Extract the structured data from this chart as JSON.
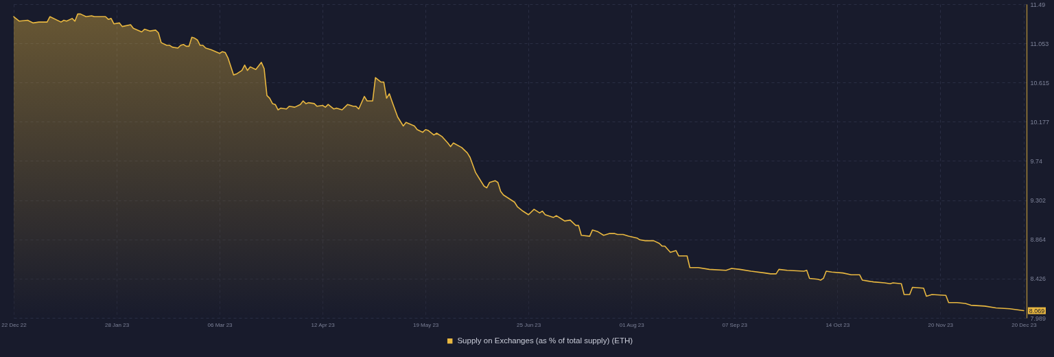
{
  "chart_data": {
    "type": "area",
    "legend": "bottom",
    "grid": true,
    "xlim": [
      "2022-12-22",
      "2023-12-21"
    ],
    "xticks": [
      {
        "value": "2022-12-22",
        "label": "22 Dec 22"
      },
      {
        "value": "2023-01-28",
        "label": "28 Jan 23"
      },
      {
        "value": "2023-03-06",
        "label": "06 Mar 23"
      },
      {
        "value": "2023-04-12",
        "label": "12 Apr 23"
      },
      {
        "value": "2023-05-19",
        "label": "19 May 23"
      },
      {
        "value": "2023-06-25",
        "label": "25 Jun 23"
      },
      {
        "value": "2023-08-01",
        "label": "01 Aug 23"
      },
      {
        "value": "2023-09-07",
        "label": "07 Sep 23"
      },
      {
        "value": "2023-10-14",
        "label": "14 Oct 23"
      },
      {
        "value": "2023-11-20",
        "label": "20 Nov 23"
      },
      {
        "value": "2023-12-20",
        "label": "20 Dec 23"
      }
    ],
    "ylim": [
      7.989,
      11.49
    ],
    "yticks": [
      7.989,
      8.426,
      8.864,
      9.302,
      9.74,
      10.177,
      10.615,
      11.053,
      11.49
    ],
    "x": [
      "2022-12-22",
      "2022-12-24",
      "2022-12-27",
      "2022-12-29",
      "2022-12-31",
      "2023-01-03",
      "2023-01-04",
      "2023-01-08",
      "2023-01-09",
      "2023-01-10",
      "2023-01-12",
      "2023-01-13",
      "2023-01-14",
      "2023-01-15",
      "2023-01-17",
      "2023-01-19",
      "2023-01-20",
      "2023-01-24",
      "2023-01-25",
      "2023-01-26",
      "2023-01-27",
      "2023-01-29",
      "2023-01-30",
      "2023-02-02",
      "2023-02-03",
      "2023-02-06",
      "2023-02-07",
      "2023-02-09",
      "2023-02-11",
      "2023-02-12",
      "2023-02-13",
      "2023-02-15",
      "2023-02-16",
      "2023-02-17",
      "2023-02-19",
      "2023-02-20",
      "2023-02-21",
      "2023-02-22",
      "2023-02-23",
      "2023-02-24",
      "2023-02-25",
      "2023-02-26",
      "2023-02-27",
      "2023-02-28",
      "2023-03-01",
      "2023-03-03",
      "2023-03-06",
      "2023-03-07",
      "2023-03-08",
      "2023-03-09",
      "2023-03-11",
      "2023-03-12",
      "2023-03-14",
      "2023-03-15",
      "2023-03-16",
      "2023-03-17",
      "2023-03-19",
      "2023-03-21",
      "2023-03-22",
      "2023-03-23",
      "2023-03-24",
      "2023-03-25",
      "2023-03-26",
      "2023-03-27",
      "2023-03-28",
      "2023-03-30",
      "2023-03-31",
      "2023-04-02",
      "2023-04-04",
      "2023-04-05",
      "2023-04-06",
      "2023-04-07",
      "2023-04-09",
      "2023-04-10",
      "2023-04-12",
      "2023-04-13",
      "2023-04-14",
      "2023-04-16",
      "2023-04-17",
      "2023-04-19",
      "2023-04-21",
      "2023-04-23",
      "2023-04-24",
      "2023-04-25",
      "2023-04-27",
      "2023-04-28",
      "2023-04-30",
      "2023-05-01",
      "2023-05-03",
      "2023-05-04",
      "2023-05-05",
      "2023-05-06",
      "2023-05-07",
      "2023-05-09",
      "2023-05-11",
      "2023-05-12",
      "2023-05-15",
      "2023-05-16",
      "2023-05-18",
      "2023-05-19",
      "2023-05-20",
      "2023-05-22",
      "2023-05-23",
      "2023-05-25",
      "2023-05-27",
      "2023-05-28",
      "2023-05-29",
      "2023-06-01",
      "2023-06-03",
      "2023-06-04",
      "2023-06-06",
      "2023-06-09",
      "2023-06-10",
      "2023-06-11",
      "2023-06-13",
      "2023-06-14",
      "2023-06-15",
      "2023-06-16",
      "2023-06-18",
      "2023-06-20",
      "2023-06-21",
      "2023-06-23",
      "2023-06-25",
      "2023-06-27",
      "2023-06-29",
      "2023-06-30",
      "2023-07-01",
      "2023-07-04",
      "2023-07-05",
      "2023-07-07",
      "2023-07-08",
      "2023-07-10",
      "2023-07-12",
      "2023-07-13",
      "2023-07-14",
      "2023-07-17",
      "2023-07-18",
      "2023-07-20",
      "2023-07-22",
      "2023-07-24",
      "2023-07-26",
      "2023-07-27",
      "2023-07-29",
      "2023-07-31",
      "2023-08-03",
      "2023-08-04",
      "2023-08-06",
      "2023-08-09",
      "2023-08-11",
      "2023-08-12",
      "2023-08-13",
      "2023-08-15",
      "2023-08-17",
      "2023-08-18",
      "2023-08-21",
      "2023-08-22",
      "2023-08-25",
      "2023-08-29",
      "2023-09-04",
      "2023-09-06",
      "2023-09-09",
      "2023-09-13",
      "2023-09-18",
      "2023-09-20",
      "2023-09-22",
      "2023-09-23",
      "2023-09-26",
      "2023-10-02",
      "2023-10-03",
      "2023-10-04",
      "2023-10-07",
      "2023-10-08",
      "2023-10-09",
      "2023-10-10",
      "2023-10-12",
      "2023-10-16",
      "2023-10-19",
      "2023-10-22",
      "2023-10-23",
      "2023-10-25",
      "2023-10-27",
      "2023-10-31",
      "2023-11-02",
      "2023-11-03",
      "2023-11-06",
      "2023-11-07",
      "2023-11-09",
      "2023-11-10",
      "2023-11-14",
      "2023-11-15",
      "2023-11-17",
      "2023-11-22",
      "2023-11-23",
      "2023-11-26",
      "2023-11-29",
      "2023-12-01",
      "2023-12-06",
      "2023-12-10",
      "2023-12-15",
      "2023-12-20"
    ],
    "series": [
      {
        "name": "Supply on Exchanges (as % of total supply) (ETH)",
        "color": "#e9b840",
        "values": [
          11.35,
          11.3,
          11.31,
          11.28,
          11.29,
          11.29,
          11.35,
          11.29,
          11.31,
          11.3,
          11.33,
          11.3,
          11.38,
          11.38,
          11.35,
          11.36,
          11.35,
          11.35,
          11.32,
          11.33,
          11.27,
          11.28,
          11.24,
          11.26,
          11.22,
          11.18,
          11.21,
          11.19,
          11.2,
          11.17,
          11.06,
          11.03,
          11.03,
          11.01,
          11.0,
          11.03,
          11.04,
          11.02,
          11.02,
          11.12,
          11.11,
          11.09,
          11.03,
          11.03,
          11.0,
          10.98,
          10.94,
          10.96,
          10.95,
          10.89,
          10.7,
          10.71,
          10.75,
          10.81,
          10.75,
          10.79,
          10.76,
          10.84,
          10.77,
          10.47,
          10.44,
          10.38,
          10.37,
          10.31,
          10.33,
          10.32,
          10.35,
          10.34,
          10.37,
          10.41,
          10.38,
          10.39,
          10.38,
          10.35,
          10.36,
          10.34,
          10.37,
          10.32,
          10.33,
          10.31,
          10.37,
          10.35,
          10.35,
          10.32,
          10.46,
          10.41,
          10.41,
          10.67,
          10.62,
          10.62,
          10.44,
          10.49,
          10.4,
          10.23,
          10.13,
          10.17,
          10.13,
          10.09,
          10.06,
          10.09,
          10.08,
          10.03,
          10.05,
          10.01,
          9.94,
          9.9,
          9.94,
          9.89,
          9.83,
          9.78,
          9.61,
          9.46,
          9.44,
          9.5,
          9.52,
          9.5,
          9.4,
          9.36,
          9.32,
          9.28,
          9.23,
          9.18,
          9.14,
          9.2,
          9.16,
          9.18,
          9.14,
          9.11,
          9.13,
          9.09,
          9.07,
          9.08,
          9.02,
          9.02,
          8.91,
          8.9,
          8.97,
          8.95,
          8.91,
          8.93,
          8.93,
          8.92,
          8.92,
          8.9,
          8.88,
          8.86,
          8.85,
          8.85,
          8.82,
          8.79,
          8.79,
          8.72,
          8.74,
          8.68,
          8.68,
          8.55,
          8.55,
          8.53,
          8.52,
          8.54,
          8.53,
          8.51,
          8.49,
          8.48,
          8.48,
          8.53,
          8.52,
          8.51,
          8.52,
          8.43,
          8.42,
          8.41,
          8.43,
          8.51,
          8.5,
          8.49,
          8.47,
          8.47,
          8.41,
          8.4,
          8.39,
          8.38,
          8.37,
          8.38,
          8.37,
          8.25,
          8.25,
          8.33,
          8.32,
          8.23,
          8.25,
          8.24,
          8.16,
          8.16,
          8.15,
          8.13,
          8.12,
          8.1,
          8.09,
          8.069
        ],
        "value_labels": [
          null,
          null,
          null,
          null,
          null,
          null,
          null,
          null,
          null,
          null,
          null,
          null,
          null,
          null,
          null,
          null,
          null,
          null,
          null,
          null,
          null,
          null,
          null,
          null,
          null,
          null,
          null,
          null,
          null,
          null,
          null,
          null,
          null,
          null,
          null,
          null,
          null,
          null,
          null,
          null,
          null,
          null,
          null,
          null,
          null,
          null,
          null,
          null,
          null,
          null,
          null,
          null,
          null,
          null,
          null,
          null,
          null,
          null,
          null,
          null,
          null,
          null,
          null,
          null,
          null,
          null,
          null,
          null,
          null,
          null,
          null,
          null,
          null,
          null,
          null,
          null,
          null,
          null,
          null,
          null,
          null,
          null,
          null,
          null,
          null,
          null,
          null,
          null,
          null,
          null,
          null,
          null,
          null,
          null,
          null,
          null,
          null,
          null,
          null,
          null,
          null,
          null,
          null,
          null,
          null,
          null,
          null,
          null,
          null,
          null,
          null,
          null,
          null,
          null,
          null,
          null,
          null,
          null,
          null,
          null,
          null,
          null,
          null,
          null,
          null,
          null,
          null,
          null,
          null,
          null,
          null,
          null,
          null,
          null,
          null,
          null,
          null,
          null,
          null,
          null,
          null,
          null,
          null,
          null,
          null,
          null,
          null,
          null,
          null,
          null,
          null,
          null,
          null,
          null,
          null,
          null,
          null,
          null,
          null,
          null,
          null,
          null,
          null,
          null,
          null,
          null,
          null,
          null,
          null,
          null,
          null,
          null,
          null,
          null,
          null,
          null,
          null,
          null,
          null,
          null,
          null,
          null,
          null,
          null,
          null,
          null,
          null,
          null,
          null,
          null,
          null,
          null,
          null,
          null,
          null,
          null,
          null,
          null,
          null,
          "8.069"
        ]
      }
    ]
  }
}
